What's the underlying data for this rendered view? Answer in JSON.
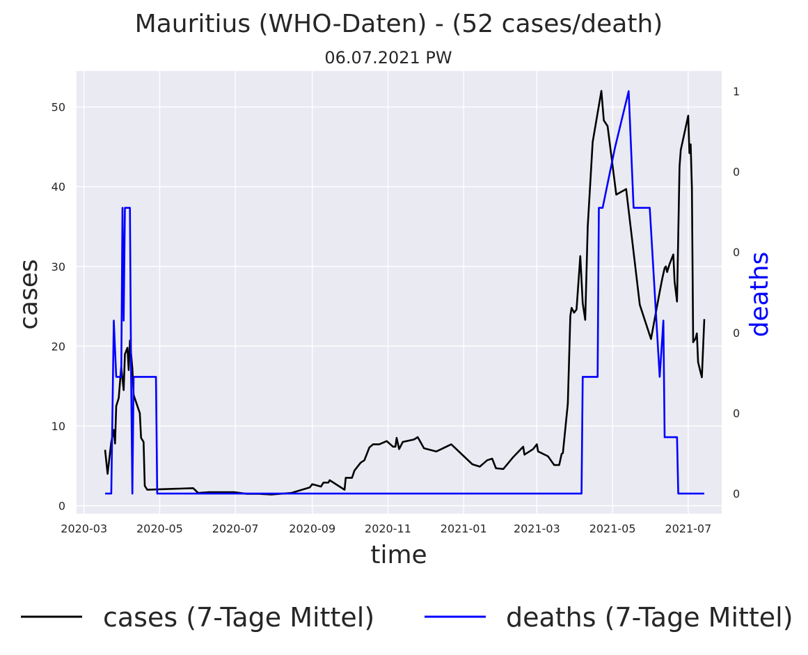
{
  "chart_data": {
    "type": "line",
    "title": "Mauritius (WHO-Daten) - (52 cases/death)",
    "subtitle": "06.07.2021 PW",
    "xlabel": "time",
    "ylabel": "cases",
    "ylabel_right": "deaths",
    "x_ticks": [
      "2020-03",
      "2020-05",
      "2020-07",
      "2020-09",
      "2020-11",
      "2021-01",
      "2021-03",
      "2021-05",
      "2021-07"
    ],
    "y_ticks": [
      0,
      10,
      20,
      30,
      40,
      50
    ],
    "y_ticks_right": [
      "1",
      "0",
      "0",
      "0",
      "0",
      "0"
    ],
    "ylim": [
      -1,
      54.5
    ],
    "ylim_right": [
      -0.05,
      1.05
    ],
    "xlim": [
      "2020-02-24",
      "2021-07-28"
    ],
    "grid": true,
    "legend_position": "bottom",
    "colors": {
      "cases": "#000000",
      "deaths": "#0000ff",
      "plot_bg": "#eaeaf2",
      "grid": "#ffffff"
    },
    "series": [
      {
        "name": "cases (7-Tage Mittel)",
        "axis": "left",
        "color": "#000000",
        "points": [
          [
            "2020-03-18",
            7
          ],
          [
            "2020-03-20",
            4
          ],
          [
            "2020-03-23",
            8
          ],
          [
            "2020-03-25",
            9.5
          ],
          [
            "2020-03-26",
            7.8
          ],
          [
            "2020-03-27",
            12.5
          ],
          [
            "2020-03-29",
            13.5
          ],
          [
            "2020-03-31",
            17.4
          ],
          [
            "2020-04-02",
            14.5
          ],
          [
            "2020-04-03",
            19
          ],
          [
            "2020-04-05",
            19.8
          ],
          [
            "2020-04-06",
            17
          ],
          [
            "2020-04-07",
            20.7
          ],
          [
            "2020-04-09",
            17.2
          ],
          [
            "2020-04-10",
            13.9
          ],
          [
            "2020-04-15",
            11.6
          ],
          [
            "2020-04-16",
            8.5
          ],
          [
            "2020-04-18",
            8
          ],
          [
            "2020-04-19",
            2.5
          ],
          [
            "2020-04-21",
            2
          ],
          [
            "2020-05-28",
            2.2
          ],
          [
            "2020-06-01",
            1.6
          ],
          [
            "2020-06-10",
            1.7
          ],
          [
            "2020-06-30",
            1.7
          ],
          [
            "2020-07-10",
            1.5
          ],
          [
            "2020-07-20",
            1.5
          ],
          [
            "2020-07-30",
            1.4
          ],
          [
            "2020-08-15",
            1.6
          ],
          [
            "2020-08-30",
            2.3
          ],
          [
            "2020-09-01",
            2.7
          ],
          [
            "2020-09-08",
            2.4
          ],
          [
            "2020-09-10",
            2.9
          ],
          [
            "2020-09-14",
            2.9
          ],
          [
            "2020-09-15",
            3.2
          ],
          [
            "2020-09-27",
            2
          ],
          [
            "2020-09-28",
            3.5
          ],
          [
            "2020-10-03",
            3.5
          ],
          [
            "2020-10-05",
            4.4
          ],
          [
            "2020-10-10",
            5.4
          ],
          [
            "2020-10-13",
            5.7
          ],
          [
            "2020-10-17",
            7.3
          ],
          [
            "2020-10-20",
            7.7
          ],
          [
            "2020-10-25",
            7.7
          ],
          [
            "2020-10-31",
            8.1
          ],
          [
            "2020-11-05",
            7.4
          ],
          [
            "2020-11-07",
            7.4
          ],
          [
            "2020-11-08",
            8.5
          ],
          [
            "2020-11-10",
            7.1
          ],
          [
            "2020-11-13",
            8
          ],
          [
            "2020-11-22",
            8.3
          ],
          [
            "2020-11-25",
            8.6
          ],
          [
            "2020-11-30",
            7.2
          ],
          [
            "2020-12-10",
            6.8
          ],
          [
            "2020-12-22",
            7.7
          ],
          [
            "2021-01-08",
            5.2
          ],
          [
            "2021-01-14",
            4.9
          ],
          [
            "2021-01-20",
            5.7
          ],
          [
            "2021-01-24",
            5.9
          ],
          [
            "2021-01-27",
            4.7
          ],
          [
            "2021-02-02",
            4.6
          ],
          [
            "2021-02-10",
            6.1
          ],
          [
            "2021-02-18",
            7.4
          ],
          [
            "2021-02-19",
            6.4
          ],
          [
            "2021-02-26",
            7.1
          ],
          [
            "2021-03-01",
            7.7
          ],
          [
            "2021-03-02",
            6.8
          ],
          [
            "2021-03-10",
            6.2
          ],
          [
            "2021-03-15",
            5.1
          ],
          [
            "2021-03-19",
            5.1
          ],
          [
            "2021-03-21",
            6.5
          ],
          [
            "2021-03-22",
            6.6
          ],
          [
            "2021-03-26",
            12.8
          ],
          [
            "2021-03-28",
            23.8
          ],
          [
            "2021-03-29",
            24.8
          ],
          [
            "2021-03-31",
            24.2
          ],
          [
            "2021-04-02",
            24.6
          ],
          [
            "2021-04-05",
            31.3
          ],
          [
            "2021-04-07",
            25.4
          ],
          [
            "2021-04-09",
            23.3
          ],
          [
            "2021-04-11",
            35
          ],
          [
            "2021-04-15",
            45.6
          ],
          [
            "2021-04-22",
            52
          ],
          [
            "2021-04-24",
            48.3
          ],
          [
            "2021-04-27",
            47.6
          ],
          [
            "2021-05-04",
            39
          ],
          [
            "2021-05-12",
            39.7
          ],
          [
            "2021-05-23",
            25.2
          ],
          [
            "2021-06-01",
            20.9
          ],
          [
            "2021-06-08",
            26.8
          ],
          [
            "2021-06-10",
            28.4
          ],
          [
            "2021-06-12",
            29.8
          ],
          [
            "2021-06-13",
            30
          ],
          [
            "2021-06-14",
            29.3
          ],
          [
            "2021-06-16",
            30.3
          ],
          [
            "2021-06-19",
            31.5
          ],
          [
            "2021-06-20",
            28.1
          ],
          [
            "2021-06-22",
            25.6
          ],
          [
            "2021-06-24",
            42.5
          ],
          [
            "2021-06-25",
            44.6
          ],
          [
            "2021-07-01",
            48.9
          ],
          [
            "2021-07-02",
            44.2
          ],
          [
            "2021-07-03",
            45.3
          ],
          [
            "2021-07-04",
            39.8
          ],
          [
            "2021-07-05",
            20.5
          ],
          [
            "2021-07-07",
            21
          ],
          [
            "2021-07-08",
            21.6
          ],
          [
            "2021-07-09",
            18
          ],
          [
            "2021-07-11",
            16.7
          ],
          [
            "2021-07-12",
            16.1
          ],
          [
            "2021-07-14",
            23.4
          ]
        ]
      },
      {
        "name": "deaths (7-Tage Mittel)",
        "axis": "right",
        "color": "#0000ff",
        "points": [
          [
            "2020-03-18",
            0
          ],
          [
            "2020-03-23",
            0
          ],
          [
            "2020-03-25",
            0.43
          ],
          [
            "2020-03-27",
            0.29
          ],
          [
            "2020-03-31",
            0.29
          ],
          [
            "2020-04-01",
            0.71
          ],
          [
            "2020-04-02",
            0.43
          ],
          [
            "2020-04-03",
            0.71
          ],
          [
            "2020-04-05",
            0.71
          ],
          [
            "2020-04-06",
            0.71
          ],
          [
            "2020-04-07",
            0.71
          ],
          [
            "2020-04-08",
            0.29
          ],
          [
            "2020-04-09",
            0
          ],
          [
            "2020-04-10",
            0.29
          ],
          [
            "2020-04-28",
            0.29
          ],
          [
            "2020-04-29",
            0
          ],
          [
            "2021-04-06",
            0
          ],
          [
            "2021-04-07",
            0.29
          ],
          [
            "2021-04-19",
            0.29
          ],
          [
            "2021-04-20",
            0.71
          ],
          [
            "2021-04-23",
            0.71
          ],
          [
            "2021-05-03",
            0.86
          ],
          [
            "2021-05-14",
            1
          ],
          [
            "2021-05-18",
            0.71
          ],
          [
            "2021-05-31",
            0.71
          ],
          [
            "2021-06-08",
            0.29
          ],
          [
            "2021-06-11",
            0.43
          ],
          [
            "2021-06-12",
            0.14
          ],
          [
            "2021-06-19",
            0.14
          ],
          [
            "2021-06-22",
            0.14
          ],
          [
            "2021-06-23",
            0
          ],
          [
            "2021-07-12",
            0
          ],
          [
            "2021-07-14",
            0
          ]
        ]
      }
    ]
  }
}
